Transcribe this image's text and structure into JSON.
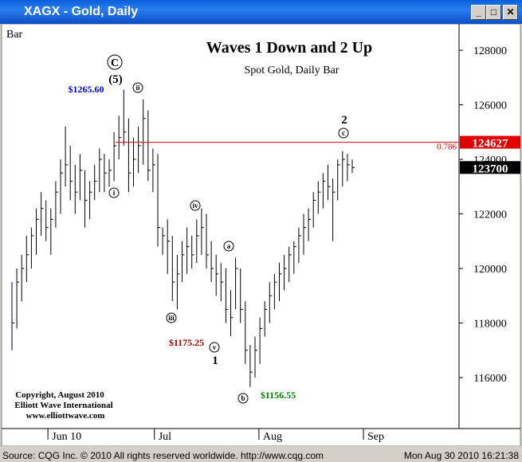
{
  "window_title": "XAGX - Gold, Daily",
  "chart_label": "Bar",
  "chart_data": {
    "type": "ohlc",
    "title": "Waves 1 Down and 2 Up",
    "subtitle": "Spot Gold, Daily Bar",
    "high": [
      119500,
      120000,
      120500,
      121200,
      121500,
      122200,
      122800,
      122500,
      122200,
      123200,
      124000,
      125200,
      124500,
      123800,
      124200,
      123600,
      123200,
      123800,
      124400,
      124200,
      124000,
      125000,
      125600,
      126560,
      125500,
      124800,
      125200,
      126200,
      125800,
      124400,
      124200,
      121500,
      121800,
      121200,
      120500,
      121000,
      121500,
      121200,
      121800,
      122200,
      122000,
      121000,
      120500,
      120200,
      120000,
      119200,
      120400,
      120000,
      118800,
      117200,
      117500,
      118200,
      118800,
      119500,
      119800,
      120200,
      120500,
      120800,
      121000,
      121500,
      122000,
      122200,
      122800,
      123200,
      123500,
      123800,
      123300,
      124000,
      124300,
      124200,
      124000
    ],
    "low": [
      117000,
      117800,
      118800,
      119500,
      120000,
      120500,
      121200,
      121000,
      120500,
      121500,
      122000,
      123000,
      122500,
      122000,
      122500,
      121500,
      121800,
      122500,
      122800,
      122800,
      123000,
      123200,
      124000,
      124500,
      122800,
      123000,
      123500,
      123800,
      123200,
      122800,
      120800,
      120500,
      119800,
      118800,
      118500,
      119500,
      119800,
      120000,
      120200,
      120500,
      120000,
      119500,
      119000,
      118800,
      118000,
      117525,
      118500,
      118000,
      116500,
      115655,
      116000,
      116500,
      117500,
      118000,
      118500,
      118800,
      119200,
      119500,
      119800,
      120200,
      120500,
      121000,
      121500,
      122000,
      122200,
      122500,
      121000,
      122500,
      123000,
      123200,
      123500
    ],
    "close": [
      118000,
      119500,
      120000,
      120500,
      121200,
      121800,
      122200,
      121500,
      121800,
      122800,
      123500,
      123800,
      123200,
      122800,
      123600,
      122500,
      122800,
      123200,
      124000,
      123500,
      123600,
      124500,
      124800,
      125000,
      123500,
      124000,
      124500,
      125500,
      123600,
      123800,
      121500,
      121200,
      121000,
      119500,
      119800,
      120500,
      120800,
      120500,
      121200,
      121500,
      120500,
      120000,
      119800,
      119500,
      118500,
      118200,
      120000,
      118500,
      117000,
      116200,
      117000,
      117800,
      118500,
      119000,
      119500,
      119800,
      120000,
      120500,
      120800,
      121200,
      121500,
      121800,
      122500,
      122800,
      123200,
      123000,
      122800,
      123800,
      124000,
      123800,
      123700
    ],
    "color": "#000000",
    "ylim": [
      114160,
      128820
    ],
    "yticks": [
      116000,
      118000,
      120000,
      122000,
      124000,
      126000,
      128000
    ],
    "xticks": [
      {
        "value": 7.4,
        "label": "Jun 10"
      },
      {
        "value": 29.3,
        "label": "Jul"
      },
      {
        "value": 50.8,
        "label": "Aug"
      },
      {
        "value": 72.3,
        "label": "Sep"
      }
    ],
    "levels": [
      {
        "value": 124627,
        "label": "124627",
        "ratio": "0.786",
        "color": "#e00000"
      },
      {
        "value": 123700,
        "label": "123700",
        "color": "#000000"
      }
    ],
    "annotations": [
      {
        "text": "$1265.60",
        "color": "#0000e0"
      },
      {
        "text": "C",
        "circled": true
      },
      {
        "text": "(5)"
      },
      {
        "text": "ii",
        "circled": true
      },
      {
        "text": "i",
        "circled": true
      },
      {
        "text": "iii",
        "circled": true
      },
      {
        "text": "iv",
        "circled": true
      },
      {
        "text": "$1175.25",
        "color": "#a00000"
      },
      {
        "text": "v",
        "circled": true
      },
      {
        "text": "1"
      },
      {
        "text": "a",
        "circled": true
      },
      {
        "text": "b",
        "circled": true
      },
      {
        "text": "$1156.55",
        "color": "#008000"
      },
      {
        "text": "c",
        "circled": true
      },
      {
        "text": "2"
      }
    ],
    "copyright": [
      "Copyright, August 2010",
      "Elliott Wave International",
      "www.elliottwave.com"
    ]
  },
  "status": {
    "source": "Source: CQG Inc. © 2010 All rights reserved worldwide. http://www.cqg.com",
    "timestamp": "Mon Aug 30 2010 16:21:38"
  }
}
